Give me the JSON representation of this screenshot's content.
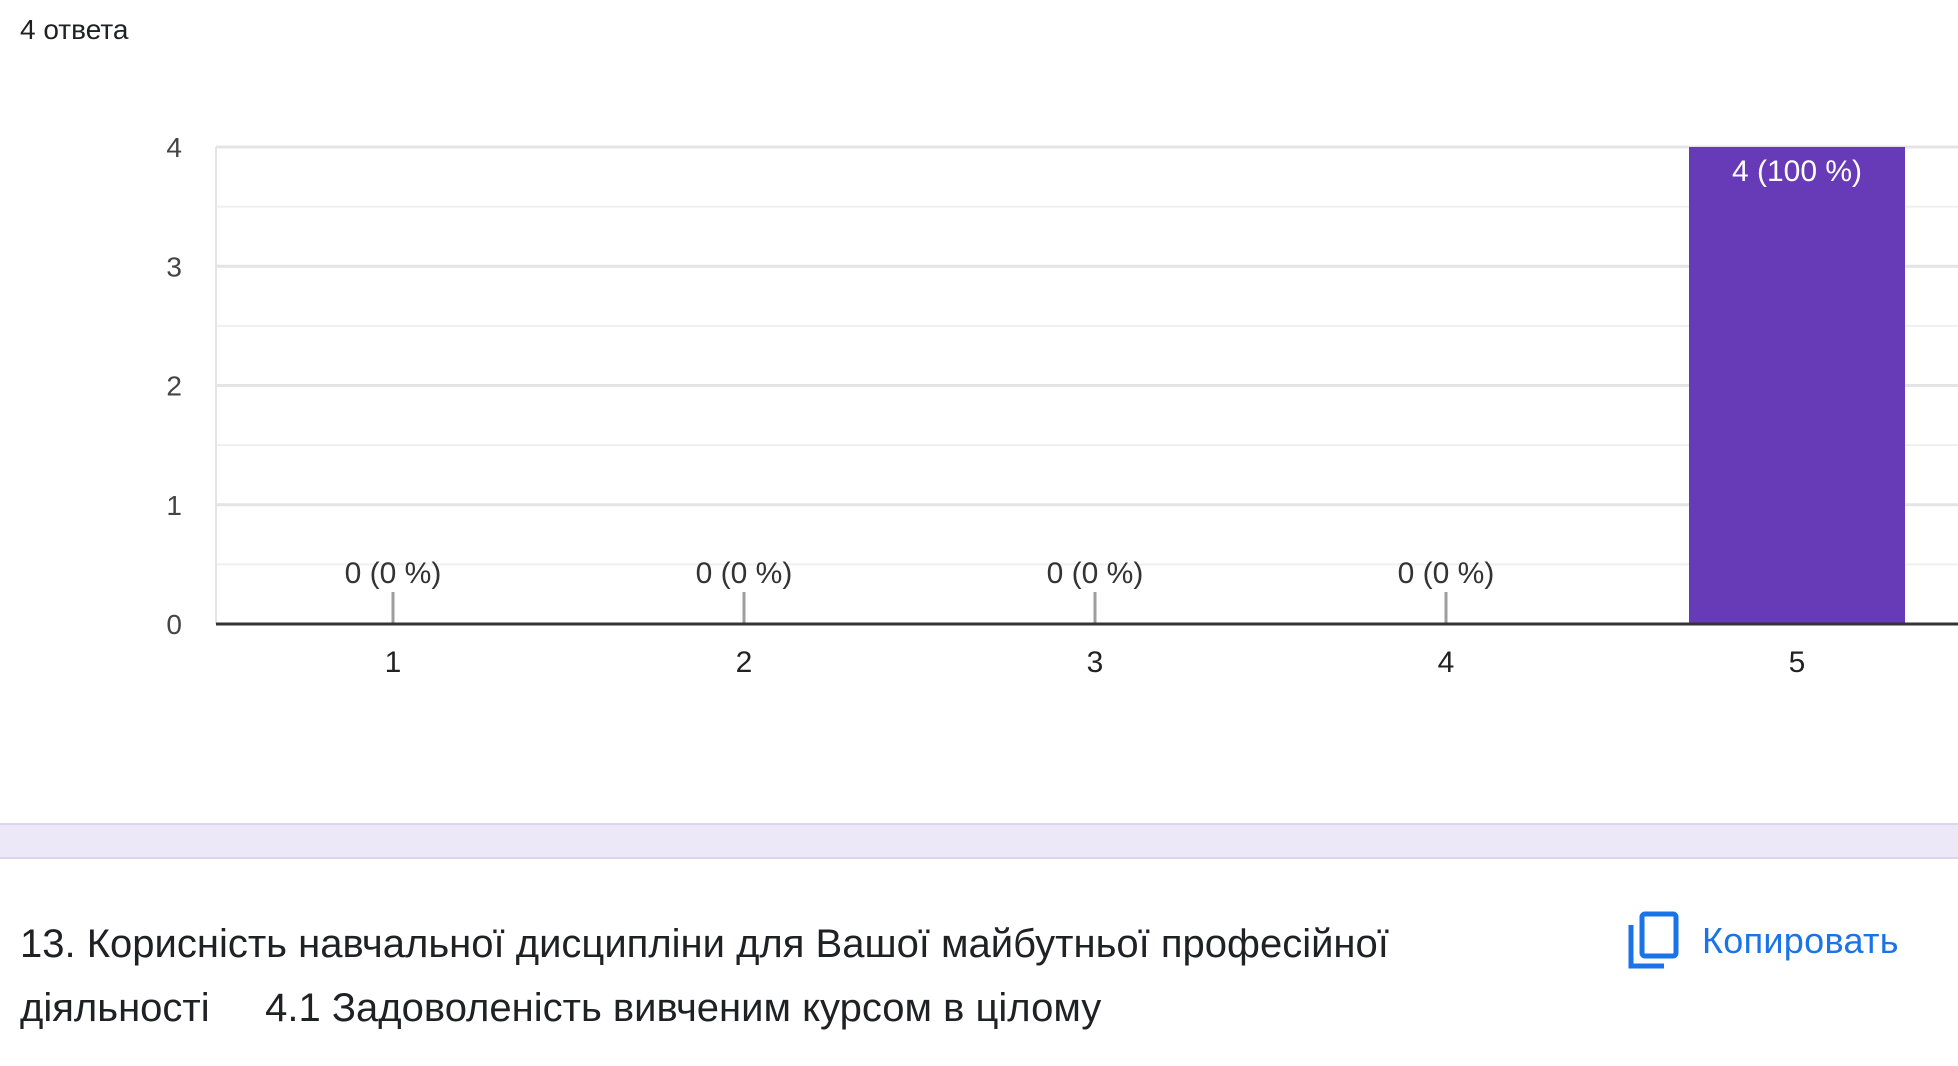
{
  "summary": {
    "responses_label": "4 ответа"
  },
  "chart_data": {
    "type": "bar",
    "categories": [
      "1",
      "2",
      "3",
      "4",
      "5"
    ],
    "values": [
      0,
      0,
      0,
      0,
      4
    ],
    "data_labels": [
      "0 (0 %)",
      "0 (0 %)",
      "0 (0 %)",
      "0 (0 %)",
      "4 (100 %)"
    ],
    "ylim": [
      0,
      4
    ],
    "yticks": [
      0,
      1,
      2,
      3,
      4
    ],
    "grid": true,
    "bar_color": "#673ab7"
  },
  "question": {
    "text": "13. Корисність навчальної дисципліни для Вашої майбутньої професійної діяльності     4.1 Задоволеність вивченим курсом в цілому"
  },
  "copy_button": {
    "label": "Копировать",
    "icon": "copy-icon",
    "color": "#1a73e8"
  }
}
